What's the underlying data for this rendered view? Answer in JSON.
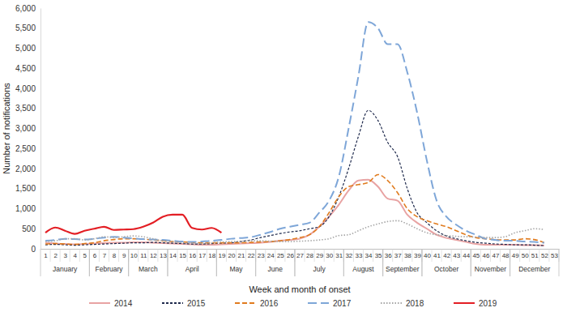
{
  "chart_data": {
    "type": "line",
    "x_label": "Week and month of onset",
    "y_label": "Number of notifications",
    "x": [
      1,
      2,
      3,
      4,
      5,
      6,
      7,
      8,
      9,
      10,
      11,
      12,
      13,
      14,
      15,
      16,
      17,
      18,
      19,
      20,
      21,
      22,
      23,
      24,
      25,
      26,
      27,
      28,
      29,
      30,
      31,
      32,
      33,
      34,
      35,
      36,
      37,
      38,
      39,
      40,
      41,
      42,
      43,
      44,
      45,
      46,
      47,
      48,
      49,
      50,
      51,
      52,
      53
    ],
    "xlim": [
      0.5,
      53.5
    ],
    "xticks": [
      1,
      2,
      3,
      4,
      5,
      6,
      7,
      8,
      9,
      10,
      11,
      12,
      13,
      14,
      15,
      16,
      17,
      18,
      19,
      20,
      21,
      22,
      23,
      24,
      25,
      26,
      27,
      28,
      29,
      30,
      31,
      32,
      33,
      34,
      35,
      36,
      37,
      38,
      39,
      40,
      41,
      42,
      43,
      44,
      45,
      46,
      47,
      48,
      49,
      50,
      51,
      52,
      53
    ],
    "x_groups": [
      {
        "label": "January",
        "start": 0.5,
        "end": 5.5
      },
      {
        "label": "February",
        "start": 5.5,
        "end": 9.5
      },
      {
        "label": "March",
        "start": 9.5,
        "end": 13.5
      },
      {
        "label": "April",
        "start": 13.5,
        "end": 18.5
      },
      {
        "label": "May",
        "start": 18.5,
        "end": 22.5
      },
      {
        "label": "June",
        "start": 22.5,
        "end": 26.5
      },
      {
        "label": "July",
        "start": 26.5,
        "end": 31.5
      },
      {
        "label": "August",
        "start": 31.5,
        "end": 35.5
      },
      {
        "label": "September",
        "start": 35.5,
        "end": 39.5
      },
      {
        "label": "October",
        "start": 39.5,
        "end": 44.5
      },
      {
        "label": "November",
        "start": 44.5,
        "end": 48.5
      },
      {
        "label": "December",
        "start": 48.5,
        "end": 53.5
      }
    ],
    "ylim": [
      0,
      6000
    ],
    "yticks": [
      0,
      500,
      {
        "value": 1000,
        "label": "1,000"
      },
      {
        "value": 1500,
        "label": "1,500"
      },
      {
        "value": 2000,
        "label": "2,000"
      },
      {
        "value": 2500,
        "label": "2,500"
      },
      {
        "value": 3000,
        "label": "3,000"
      },
      {
        "value": 3500,
        "label": "3,500"
      },
      {
        "value": 4000,
        "label": "4,000"
      },
      {
        "value": 4500,
        "label": "4,500"
      },
      {
        "value": 5000,
        "label": "5,000"
      },
      {
        "value": 5500,
        "label": "5,500"
      },
      {
        "value": 6000,
        "label": "6,000"
      }
    ],
    "grid": false,
    "legend": "bottom",
    "series": [
      {
        "name": "2014",
        "color": "#e8a3a3",
        "line_style": "solid",
        "values": [
          150,
          130,
          120,
          110,
          120,
          130,
          140,
          150,
          150,
          160,
          160,
          150,
          140,
          130,
          120,
          110,
          100,
          100,
          110,
          120,
          130,
          140,
          150,
          170,
          200,
          220,
          250,
          350,
          550,
          800,
          1100,
          1450,
          1700,
          1720,
          1550,
          1250,
          1200,
          850,
          650,
          500,
          350,
          270,
          220,
          170,
          120,
          100,
          100,
          100,
          100,
          90,
          90,
          80,
          null
        ]
      },
      {
        "name": "2015",
        "color": "#1f2a4d",
        "line_style": "short-dash",
        "values": [
          100,
          110,
          100,
          90,
          100,
          110,
          120,
          130,
          140,
          150,
          150,
          160,
          150,
          140,
          130,
          120,
          120,
          130,
          140,
          150,
          180,
          220,
          280,
          330,
          380,
          420,
          450,
          500,
          550,
          800,
          1300,
          2000,
          2800,
          3450,
          3200,
          2650,
          2300,
          1500,
          900,
          650,
          450,
          320,
          250,
          200,
          160,
          140,
          120,
          110,
          100,
          100,
          90,
          80,
          null
        ]
      },
      {
        "name": "2016",
        "color": "#e07b1e",
        "line_style": "dash",
        "values": [
          120,
          130,
          120,
          110,
          130,
          150,
          200,
          230,
          250,
          250,
          240,
          220,
          200,
          180,
          170,
          160,
          150,
          150,
          150,
          150,
          150,
          160,
          170,
          180,
          200,
          230,
          280,
          350,
          550,
          900,
          1300,
          1550,
          1600,
          1650,
          1850,
          1700,
          1400,
          1000,
          800,
          700,
          620,
          550,
          450,
          350,
          280,
          250,
          230,
          220,
          220,
          250,
          230,
          150,
          null
        ]
      },
      {
        "name": "2017",
        "color": "#7ea6d8",
        "line_style": "long-dash",
        "values": [
          200,
          220,
          250,
          240,
          230,
          250,
          280,
          300,
          280,
          260,
          240,
          230,
          220,
          200,
          180,
          170,
          180,
          200,
          220,
          250,
          270,
          290,
          350,
          420,
          500,
          550,
          600,
          650,
          900,
          1200,
          1800,
          3000,
          4300,
          5650,
          5500,
          5100,
          5100,
          4400,
          3400,
          2200,
          1200,
          800,
          600,
          450,
          350,
          250,
          220,
          200,
          200,
          180,
          170,
          150,
          null
        ]
      },
      {
        "name": "2018",
        "color": "#a6a6a6",
        "line_style": "dot",
        "values": [
          180,
          200,
          250,
          250,
          220,
          250,
          300,
          280,
          300,
          320,
          300,
          250,
          200,
          180,
          150,
          140,
          130,
          150,
          170,
          180,
          190,
          200,
          200,
          190,
          180,
          180,
          190,
          200,
          220,
          250,
          330,
          350,
          450,
          550,
          620,
          680,
          700,
          620,
          500,
          400,
          350,
          330,
          310,
          300,
          290,
          280,
          280,
          300,
          400,
          450,
          500,
          480,
          null
        ]
      },
      {
        "name": "2019",
        "color": "#e31e24",
        "line_style": "solid",
        "values": [
          400,
          530,
          450,
          370,
          450,
          500,
          550,
          470,
          480,
          490,
          550,
          650,
          800,
          850,
          850,
          520,
          480,
          520,
          400,
          null,
          null,
          null,
          null,
          null,
          null,
          null,
          null,
          null,
          null,
          null,
          null,
          null,
          null,
          null,
          null,
          null,
          null,
          null,
          null,
          null,
          null,
          null,
          null,
          null,
          null,
          null,
          null,
          null,
          null,
          null,
          null,
          null,
          null
        ]
      }
    ]
  }
}
